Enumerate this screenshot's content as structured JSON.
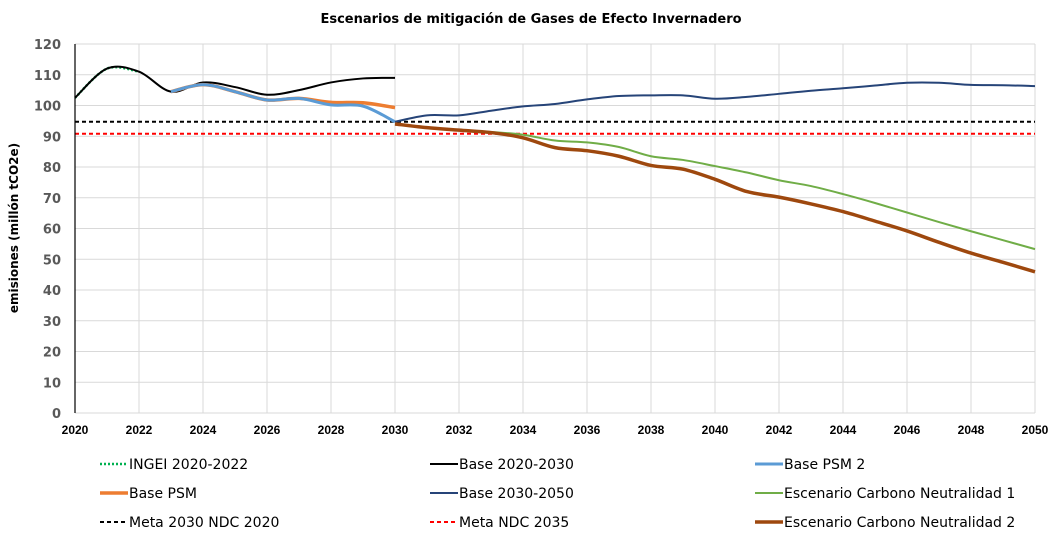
{
  "chart_data": {
    "type": "line",
    "title": "Escenarios de mitigación de Gases de Efecto Invernadero",
    "xlabel": "",
    "ylabel": "emisiones (millón tCO2e)",
    "xlim": [
      2020,
      2050
    ],
    "ylim": [
      0,
      120
    ],
    "yticks": [
      "0",
      "10",
      "20",
      "30",
      "40",
      "50",
      "60",
      "70",
      "80",
      "90",
      "100",
      "110",
      "120"
    ],
    "xticks": [
      "2020",
      "2022",
      "2024",
      "2026",
      "2028",
      "2030",
      "2032",
      "2034",
      "2036",
      "2038",
      "2040",
      "2042",
      "2044",
      "2046",
      "2048",
      "2050"
    ],
    "grid": true,
    "legend_position": "bottom",
    "series": [
      {
        "name": "INGEI 2020-2022",
        "color": "#00b050",
        "style": "dotted",
        "x": [
          2020,
          2021,
          2022
        ],
        "values": [
          102.5,
          112.0,
          111.0
        ]
      },
      {
        "name": "Base 2020-2030",
        "color": "#000000",
        "style": "solid",
        "x": [
          2020,
          2021,
          2022,
          2023,
          2024,
          2025,
          2026,
          2027,
          2028,
          2029,
          2030
        ],
        "values": [
          102.5,
          112.0,
          111.0,
          104.5,
          107.5,
          106.0,
          103.5,
          105.0,
          107.5,
          108.8,
          109.0
        ]
      },
      {
        "name": "Base PSM 2",
        "color": "#5b9bd5",
        "style": "solid",
        "x": [
          2023,
          2024,
          2025,
          2026,
          2027,
          2028,
          2029,
          2030
        ],
        "values": [
          104.5,
          106.8,
          104.5,
          101.8,
          102.3,
          100.2,
          99.8,
          94.7
        ]
      },
      {
        "name": "Base PSM",
        "color": "#ed7d31",
        "style": "solid",
        "x": [
          2023,
          2024,
          2025,
          2026,
          2027,
          2028,
          2029,
          2030
        ],
        "values": [
          104.5,
          106.8,
          104.5,
          101.8,
          102.3,
          101.0,
          100.9,
          99.3
        ]
      },
      {
        "name": "Base 2030-2050",
        "color": "#264478",
        "style": "solid",
        "x": [
          2030,
          2031,
          2032,
          2033,
          2034,
          2035,
          2036,
          2037,
          2038,
          2039,
          2040,
          2041,
          2042,
          2043,
          2044,
          2045,
          2046,
          2047,
          2048,
          2049,
          2050
        ],
        "values": [
          94.7,
          96.8,
          96.8,
          98.3,
          99.7,
          100.5,
          102.0,
          103.1,
          103.3,
          103.3,
          102.2,
          102.8,
          103.8,
          104.8,
          105.6,
          106.5,
          107.4,
          107.4,
          106.7,
          106.6,
          106.3
        ]
      },
      {
        "name": "Escenario Carbono Neutralidad 1",
        "color": "#70ad47",
        "style": "solid",
        "x": [
          2030,
          2031,
          2032,
          2033,
          2034,
          2035,
          2036,
          2037,
          2038,
          2039,
          2040,
          2041,
          2042,
          2043,
          2044,
          2045,
          2046,
          2047,
          2048,
          2049,
          2050
        ],
        "values": [
          94.0,
          92.8,
          92.0,
          91.4,
          90.5,
          88.6,
          88.0,
          86.5,
          83.5,
          82.3,
          80.3,
          78.2,
          75.7,
          73.8,
          71.2,
          68.3,
          65.2,
          62.1,
          59.1,
          56.2,
          53.3
        ]
      },
      {
        "name": "Meta 2030 NDC 2020",
        "color": "#000000",
        "style": "dashed",
        "x": [
          2020,
          2050
        ],
        "values": [
          94.7,
          94.7
        ]
      },
      {
        "name": "Meta NDC 2035",
        "color": "#ff0000",
        "style": "dashed",
        "x": [
          2020,
          2050
        ],
        "values": [
          90.8,
          90.8
        ]
      },
      {
        "name": "Escenario Carbono Neutralidad 2",
        "color": "#9e480e",
        "style": "solid",
        "x": [
          2030,
          2031,
          2032,
          2033,
          2034,
          2035,
          2036,
          2037,
          2038,
          2039,
          2040,
          2041,
          2042,
          2043,
          2044,
          2045,
          2046,
          2047,
          2048,
          2049,
          2050
        ],
        "values": [
          94.0,
          92.8,
          92.0,
          91.2,
          89.5,
          86.3,
          85.3,
          83.5,
          80.5,
          79.3,
          76.0,
          72.0,
          70.2,
          68.0,
          65.5,
          62.4,
          59.2,
          55.5,
          52.0,
          49.0,
          45.9
        ]
      }
    ],
    "legend": [
      {
        "label": "INGEI 2020-2022",
        "series": 0
      },
      {
        "label": "Base 2020-2030",
        "series": 1
      },
      {
        "label": "Base PSM 2",
        "series": 2
      },
      {
        "label": "Base PSM",
        "series": 3
      },
      {
        "label": "Base 2030-2050",
        "series": 4
      },
      {
        "label": "Escenario Carbono Neutralidad 1",
        "series": 5
      },
      {
        "label": "Meta 2030 NDC 2020",
        "series": 6
      },
      {
        "label": "Meta NDC 2035",
        "series": 7
      },
      {
        "label": "Escenario Carbono Neutralidad 2",
        "series": 8
      }
    ]
  }
}
